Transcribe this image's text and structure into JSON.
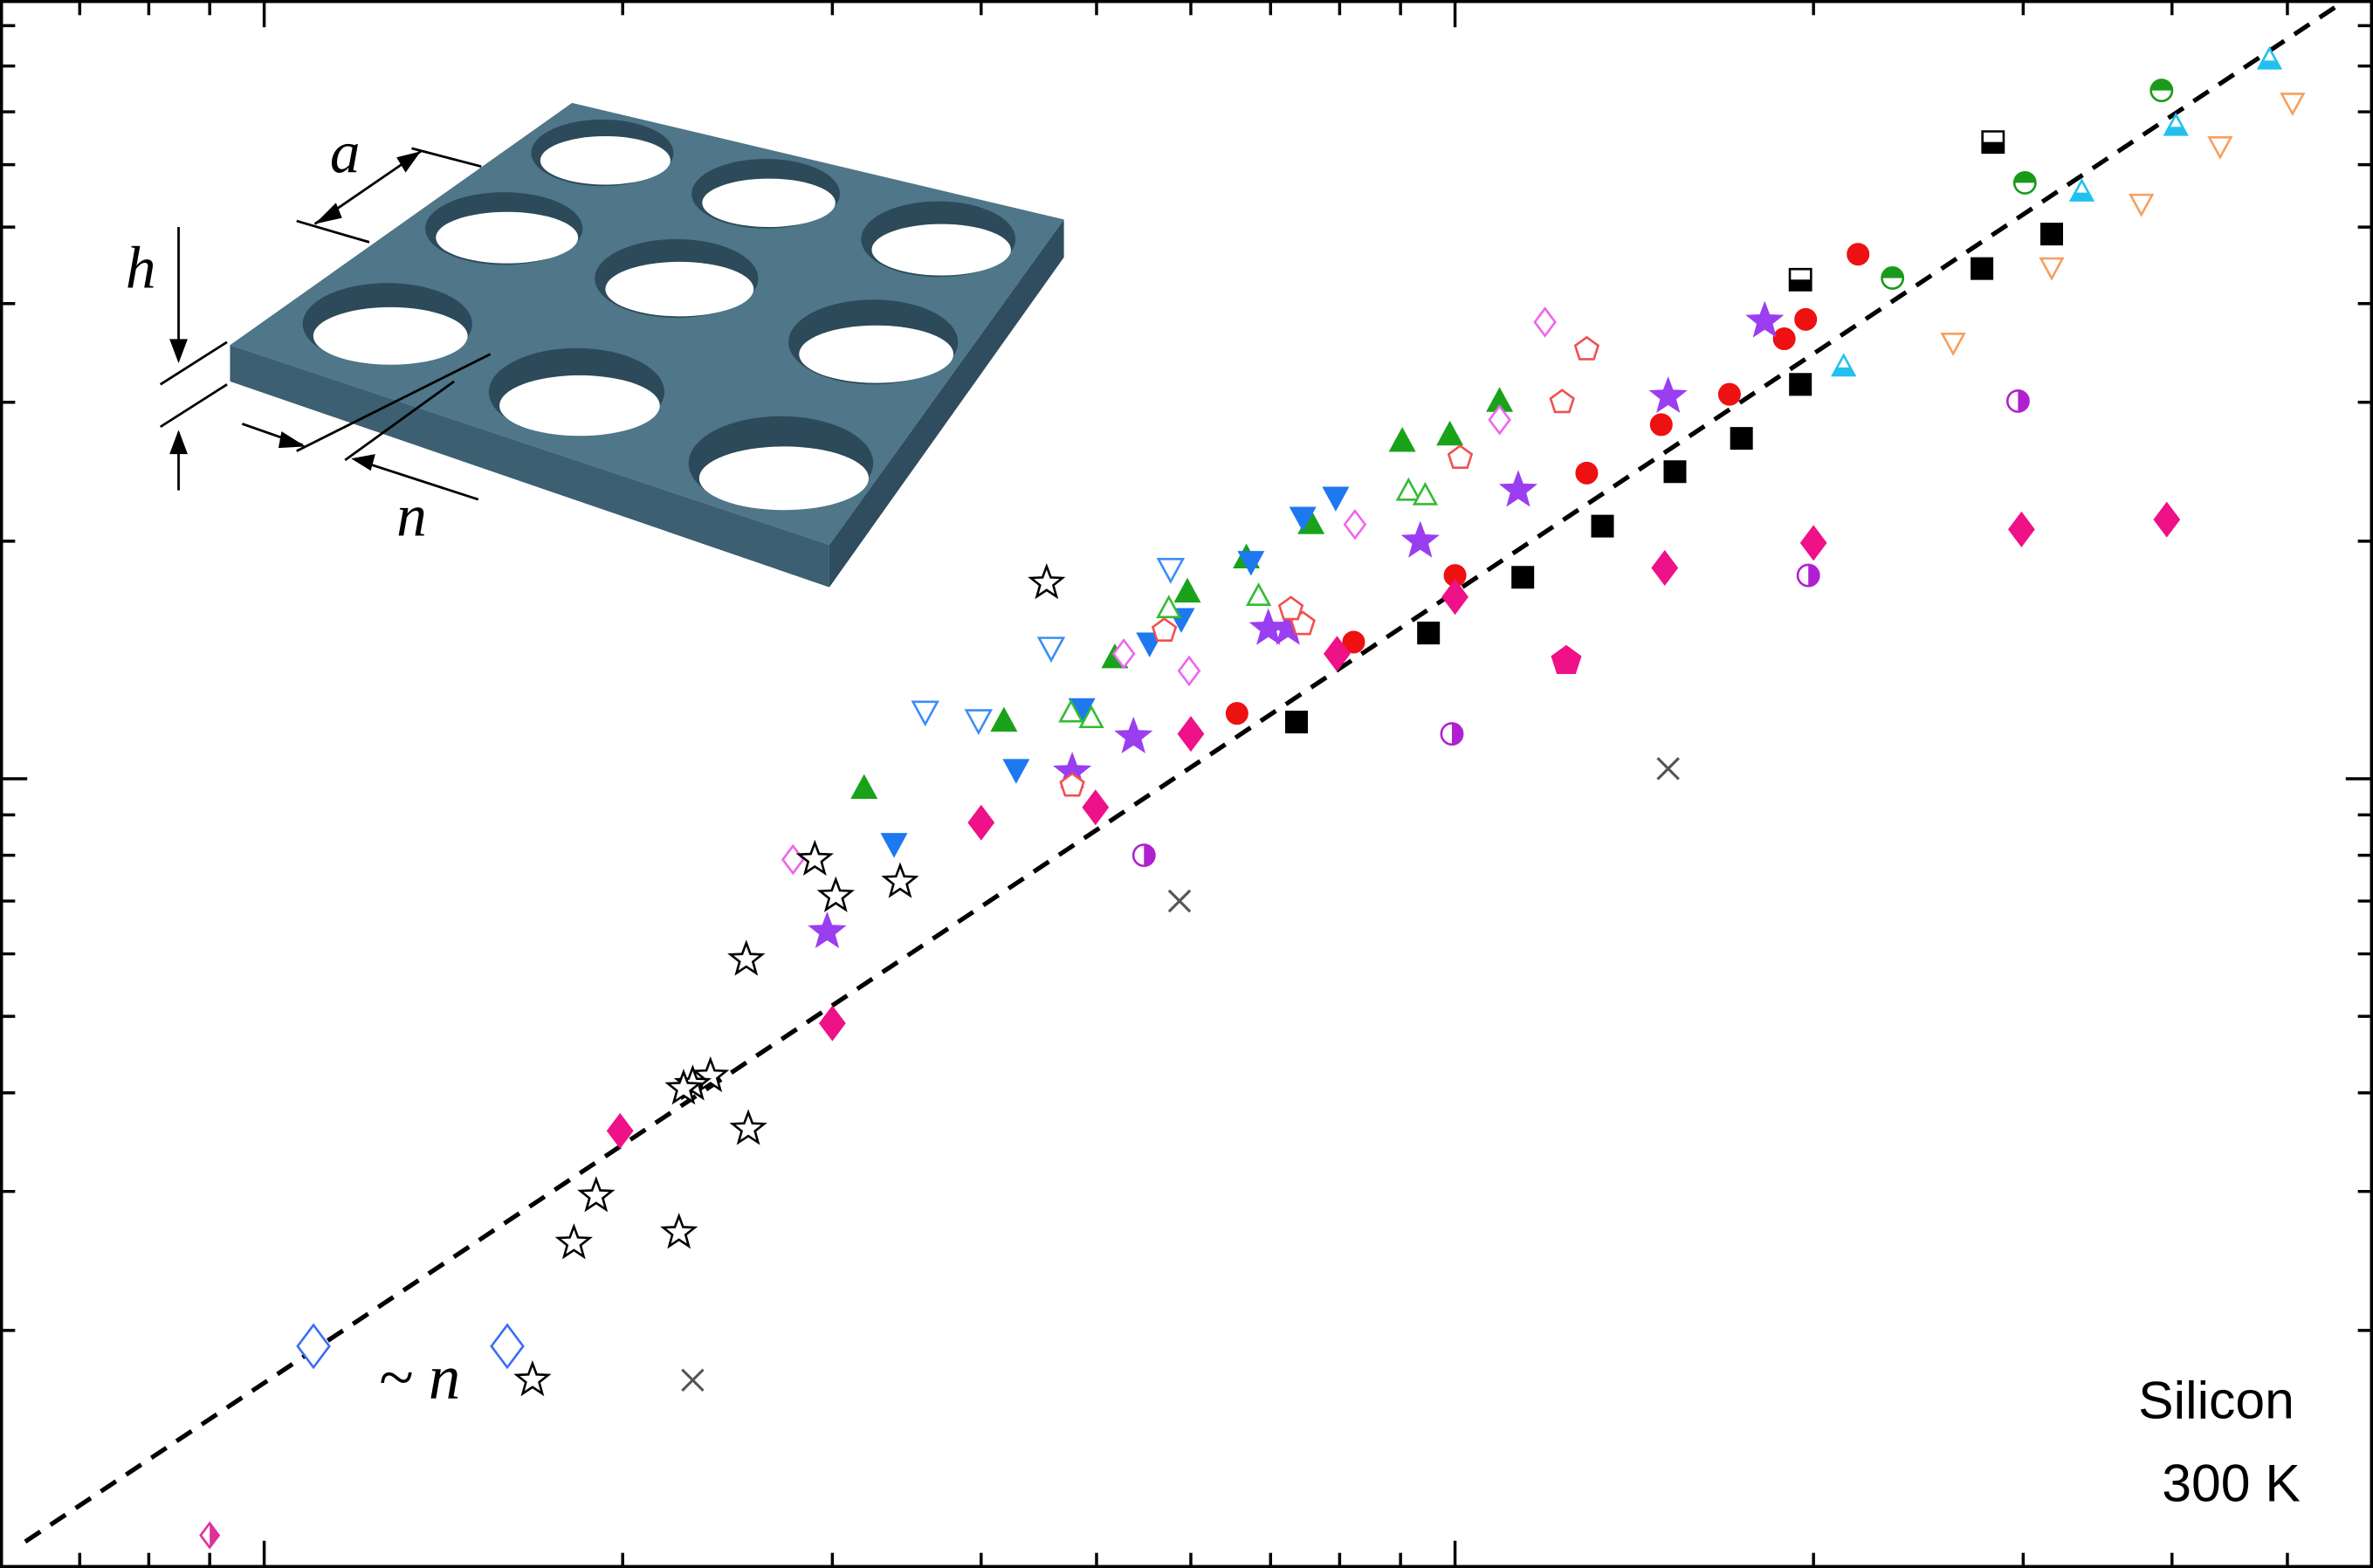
{
  "chart_data": {
    "type": "scatter",
    "log_x": true,
    "log_y": true,
    "xlim": [
      6,
      590
    ],
    "ylim": [
      1,
      97
    ],
    "xticks": [
      10,
      100
    ],
    "xminorticks": [
      7,
      8,
      9,
      20,
      30,
      40,
      50,
      60,
      70,
      80,
      90,
      200,
      300,
      400,
      500
    ],
    "yticks": [
      10
    ],
    "yminorticks": [
      2,
      3,
      4,
      5,
      6,
      7,
      8,
      9,
      20,
      30,
      40,
      50,
      60,
      70,
      80,
      90
    ],
    "annotations": [
      "Silicon",
      "300 K",
      "~ n"
    ],
    "inset_labels": [
      "a",
      "h",
      "n"
    ],
    "reference_line": {
      "x": [
        6.3,
        560
      ],
      "y": [
        1.08,
        97
      ],
      "color": "#000000",
      "dashed": true
    },
    "series": [
      {
        "color": "#000000",
        "marker": "square",
        "fill": "half",
        "half": "bottom",
        "size": 7,
        "x": [
          283,
          195
        ],
        "values": [
          64.1,
          42.9
        ]
      },
      {
        "color": "#000000",
        "marker": "square",
        "fill": "full",
        "size": 7,
        "x": [
          317,
          277,
          195,
          174,
          153,
          133,
          114,
          95,
          73.6
        ],
        "values": [
          49.0,
          44.3,
          31.6,
          27.0,
          24.5,
          20.9,
          18.0,
          15.3,
          11.8
        ]
      },
      {
        "color": "#ee1111",
        "marker": "circle",
        "fill": "full",
        "size": 7,
        "x": [
          218,
          197,
          189,
          170,
          149,
          129,
          100,
          82.2,
          65.6
        ],
        "values": [
          46.2,
          38.2,
          36.1,
          30.7,
          28.1,
          24.4,
          18.1,
          14.9,
          12.1
        ]
      },
      {
        "color": "#ee1188",
        "marker": "diamond",
        "fill": "full",
        "size": 11,
        "x": [
          396,
          299,
          200,
          150,
          100,
          79.6,
          60.0,
          49.9,
          40.0,
          30.0,
          19.9
        ],
        "values": [
          21.3,
          20.7,
          19.9,
          18.5,
          17.0,
          14.4,
          11.4,
          9.2,
          8.8,
          4.9,
          3.58
        ]
      },
      {
        "color": "#ee1188",
        "marker": "pentagon",
        "fill": "full",
        "size": 10,
        "x": [
          124
        ],
        "values": [
          14.1
        ]
      },
      {
        "color": "#9b3ef0",
        "marker": "star",
        "fill": "full",
        "size": 12,
        "x": [
          182,
          151,
          113,
          93.5,
          72.4,
          69.7,
          53.7,
          47.7,
          29.7
        ],
        "values": [
          38.0,
          30.5,
          23.2,
          20.0,
          15.5,
          15.5,
          11.3,
          10.2,
          6.4
        ]
      },
      {
        "color": "#1aa31a",
        "marker": "triangle-up",
        "fill": "full",
        "size": 9,
        "x": [
          109,
          99,
          90.3,
          75.7,
          66.8,
          59.6,
          51.8,
          41.8,
          31.9
        ],
        "values": [
          30.0,
          27.2,
          26.7,
          21.0,
          19.0,
          17.2,
          14.2,
          11.8,
          9.7
        ]
      },
      {
        "color": "#1e78f0",
        "marker": "triangle-down",
        "fill": "full",
        "size": 9,
        "x": [
          79.4,
          74.5,
          67.4,
          58.9,
          55.4,
          48.6,
          42.8,
          33.8
        ],
        "values": [
          22.8,
          21.5,
          18.9,
          16.0,
          14.9,
          12.3,
          10.3,
          8.3
        ]
      },
      {
        "color": "#3a8ef5",
        "marker": "triangle-down",
        "fill": "none",
        "size": 9,
        "x": [
          57.7,
          45.8,
          39.8,
          35.9
        ],
        "values": [
          18.5,
          14.7,
          11.9,
          12.2
        ]
      },
      {
        "color": "#33bb33",
        "marker": "triangle-up",
        "fill": "none",
        "size": 8,
        "x": [
          91.4,
          94.4,
          68.4,
          57.5,
          49.5,
          47.6
        ],
        "values": [
          23.1,
          22.8,
          17.0,
          16.4,
          11.9,
          12.1
        ]
      },
      {
        "color": "#ee66ee",
        "marker": "diamond",
        "fill": "none",
        "size": 9,
        "x": [
          119,
          109,
          82.4,
          59.8,
          52.7,
          27.8
        ],
        "values": [
          37.9,
          28.5,
          21.0,
          13.7,
          14.4,
          7.9
        ]
      },
      {
        "color": "#f05050",
        "marker": "pentagon",
        "fill": "none",
        "size": 8,
        "x": [
          129,
          123,
          101,
          74.5,
          72.8,
          57.0,
          47.7
        ],
        "values": [
          35.0,
          30.0,
          25.5,
          15.7,
          16.4,
          15.4,
          9.8
        ]
      },
      {
        "color": "#000000",
        "marker": "star",
        "fill": "none",
        "size": 11,
        "x": [
          45.4,
          29.0,
          30.2,
          34.2,
          25.4,
          23.7,
          22.9,
          22.5,
          25.5,
          19.0,
          22.3,
          18.2,
          16.8
        ],
        "values": [
          17.7,
          7.9,
          7.1,
          7.4,
          5.9,
          4.2,
          4.1,
          4.05,
          3.6,
          2.96,
          2.66,
          2.58,
          1.73
        ]
      },
      {
        "color": "#555555",
        "marker": "x",
        "fill": "none",
        "size": 7,
        "x": [
          151,
          58.7,
          22.9
        ],
        "values": [
          10.3,
          7.0,
          1.73
        ]
      },
      {
        "color": "#b020d0",
        "marker": "circle",
        "fill": "half",
        "half": "right",
        "size": 7,
        "x": [
          297,
          198,
          99.4,
          54.8
        ],
        "values": [
          30.1,
          18.1,
          11.4,
          8.0
        ]
      },
      {
        "color": "#1a9a1a",
        "marker": "circle",
        "fill": "half",
        "half": "top",
        "size": 7,
        "x": [
          392,
          301,
          233
        ],
        "values": [
          74.5,
          56.9,
          43.1
        ]
      },
      {
        "color": "#22c0ee",
        "marker": "triangle-up",
        "fill": "half",
        "half": "bottom",
        "size": 8,
        "x": [
          483,
          403,
          336,
          212
        ],
        "values": [
          81.3,
          67.0,
          55.3,
          33.2
        ]
      },
      {
        "color": "#f5a060",
        "marker": "triangle-down",
        "fill": "none",
        "size": 8,
        "x": [
          505,
          439,
          377,
          317,
          262
        ],
        "values": [
          72.1,
          63.5,
          53.7,
          44.6,
          35.8
        ]
      },
      {
        "color": "#3a6ef5",
        "marker": "diamond",
        "fill": "none",
        "size": 14,
        "x": [
          11.0,
          16.0
        ],
        "values": [
          1.91,
          1.91
        ]
      },
      {
        "color": "#e0309a",
        "marker": "diamond",
        "fill": "half",
        "half": "right",
        "size": 8,
        "x": [
          9.0
        ],
        "values": [
          1.1
        ]
      }
    ]
  }
}
